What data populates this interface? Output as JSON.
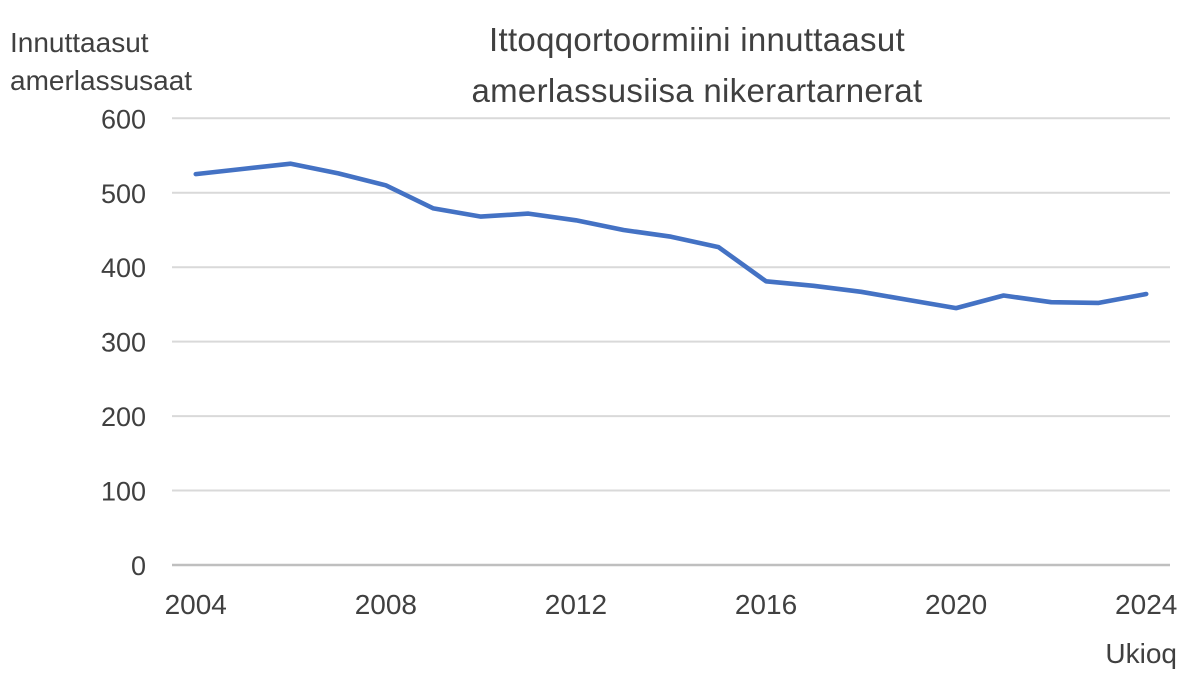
{
  "chart_data": {
    "type": "line",
    "title": "Ittoqqortoormiini innuttaasut amerlassusiisa nikerartarnerat",
    "title_lines": [
      "Ittoqqortoormiini innuttaasut",
      "amerlassusiisa nikerartarnerat"
    ],
    "ylabel": "Innuttaasut amerlassusaat",
    "ylabel_lines": [
      "Innuttaasut",
      "amerlassusaat"
    ],
    "xlabel": "Ukioq",
    "x": [
      2004,
      2005,
      2006,
      2007,
      2008,
      2009,
      2010,
      2011,
      2012,
      2013,
      2014,
      2015,
      2016,
      2017,
      2018,
      2019,
      2020,
      2021,
      2022,
      2023,
      2024
    ],
    "values": [
      525,
      532,
      539,
      526,
      510,
      479,
      468,
      472,
      463,
      450,
      441,
      427,
      381,
      375,
      367,
      356,
      345,
      362,
      353,
      352,
      364
    ],
    "xticks": [
      2004,
      2008,
      2012,
      2016,
      2020,
      2024
    ],
    "yticks": [
      0,
      100,
      200,
      300,
      400,
      500,
      600
    ],
    "ylim": [
      0,
      600
    ],
    "xlim": [
      2004,
      2024
    ],
    "grid": "horizontal",
    "legend": false,
    "colors": {
      "line": "#4472C4",
      "gridline": "#D9D9D9",
      "axis_line": "#BFBFBF",
      "text": "#404040"
    }
  }
}
